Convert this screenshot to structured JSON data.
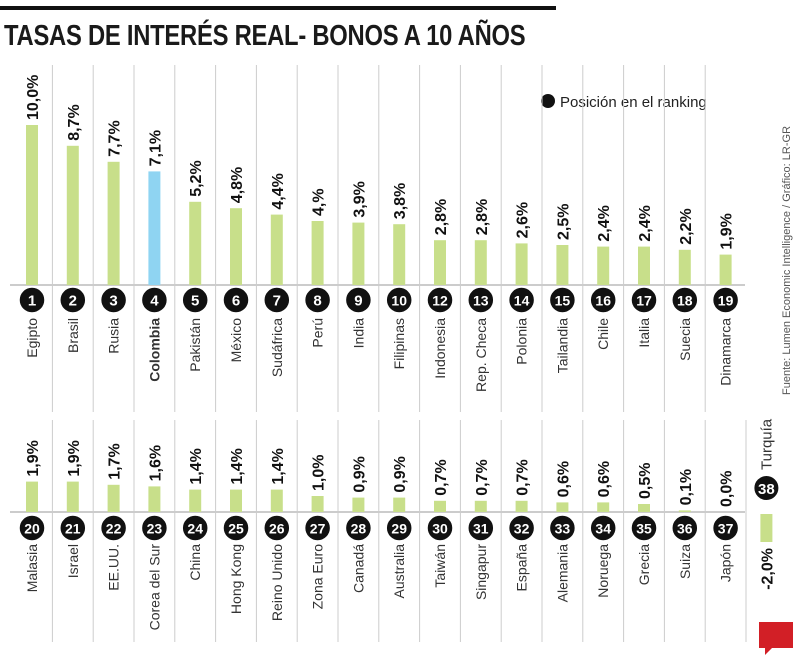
{
  "title": "TASAS DE INTERÉS REAL- BONOS A 10 AÑOS",
  "source": "Fuente: Lumen Economic Intelligence / Gráfico: LR-GR",
  "logo": "LR",
  "colors": {
    "bar": "#c8df8a",
    "highlight": "#8fd4f2",
    "circle": "#111111",
    "divider": "#cccccc"
  },
  "chart_data": {
    "type": "bar",
    "title": "TASAS DE INTERÉS REAL- BONOS A 10 AÑOS",
    "legend": {
      "label": "Posición en el ranking",
      "placement": "top-right"
    },
    "unit": "%",
    "highlight": "Colombia",
    "rows": [
      [
        {
          "rank": "1",
          "country": "Egipto",
          "value": 10.0,
          "label": "10,0%"
        },
        {
          "rank": "2",
          "country": "Brasil",
          "value": 8.7,
          "label": "8,7%"
        },
        {
          "rank": "3",
          "country": "Rusia",
          "value": 7.7,
          "label": "7,7%"
        },
        {
          "rank": "4",
          "country": "Colombia",
          "value": 7.1,
          "label": "7,1%"
        },
        {
          "rank": "5",
          "country": "Pakistán",
          "value": 5.2,
          "label": "5,2%"
        },
        {
          "rank": "6",
          "country": "México",
          "value": 4.8,
          "label": "4,8%"
        },
        {
          "rank": "7",
          "country": "Sudáfrica",
          "value": 4.4,
          "label": "4,4%"
        },
        {
          "rank": "8",
          "country": "Perú",
          "value": 4.0,
          "label": "4,%"
        },
        {
          "rank": "9",
          "country": "India",
          "value": 3.9,
          "label": "3,9%"
        },
        {
          "rank": "10",
          "country": "Filipinas",
          "value": 3.8,
          "label": "3,8%"
        },
        {
          "rank": "12",
          "country": "Indonesia",
          "value": 2.8,
          "label": "2,8%"
        },
        {
          "rank": "13",
          "country": "Rep. Checa",
          "value": 2.8,
          "label": "2,8%"
        },
        {
          "rank": "14",
          "country": "Polonia",
          "value": 2.6,
          "label": "2,6%"
        },
        {
          "rank": "15",
          "country": "Tailandia",
          "value": 2.5,
          "label": "2,5%"
        },
        {
          "rank": "16",
          "country": "Chile",
          "value": 2.4,
          "label": "2,4%"
        },
        {
          "rank": "17",
          "country": "Italia",
          "value": 2.4,
          "label": "2,4%"
        },
        {
          "rank": "18",
          "country": "Suecia",
          "value": 2.2,
          "label": "2,2%"
        },
        {
          "rank": "19",
          "country": "Dinamarca",
          "value": 1.9,
          "label": "1,9%"
        }
      ],
      [
        {
          "rank": "20",
          "country": "Malasia",
          "value": 1.9,
          "label": "1,9%"
        },
        {
          "rank": "21",
          "country": "Israel",
          "value": 1.9,
          "label": "1,9%"
        },
        {
          "rank": "22",
          "country": "EE.UU.",
          "value": 1.7,
          "label": "1,7%"
        },
        {
          "rank": "23",
          "country": "Corea del Sur",
          "value": 1.6,
          "label": "1,6%"
        },
        {
          "rank": "24",
          "country": "China",
          "value": 1.4,
          "label": "1,4%"
        },
        {
          "rank": "25",
          "country": "Hong Kong",
          "value": 1.4,
          "label": "1,4%"
        },
        {
          "rank": "26",
          "country": "Reino Unido",
          "value": 1.4,
          "label": "1,4%"
        },
        {
          "rank": "27",
          "country": "Zona Euro",
          "value": 1.0,
          "label": "1,0%"
        },
        {
          "rank": "28",
          "country": "Canadá",
          "value": 0.9,
          "label": "0,9%"
        },
        {
          "rank": "29",
          "country": "Australia",
          "value": 0.9,
          "label": "0,9%"
        },
        {
          "rank": "30",
          "country": "Taiwán",
          "value": 0.7,
          "label": "0,7%"
        },
        {
          "rank": "31",
          "country": "Singapur",
          "value": 0.7,
          "label": "0,7%"
        },
        {
          "rank": "32",
          "country": "España",
          "value": 0.7,
          "label": "0,7%"
        },
        {
          "rank": "33",
          "country": "Alemania",
          "value": 0.6,
          "label": "0,6%"
        },
        {
          "rank": "34",
          "country": "Noruega",
          "value": 0.6,
          "label": "0,6%"
        },
        {
          "rank": "35",
          "country": "Grecia",
          "value": 0.5,
          "label": "0,5%"
        },
        {
          "rank": "36",
          "country": "Suiza",
          "value": 0.1,
          "label": "0,1%"
        },
        {
          "rank": "37",
          "country": "Japón",
          "value": 0.0,
          "label": "0,0%"
        },
        {
          "rank": "38",
          "country": "Turquía",
          "value": -2.0,
          "label": "-2,0%"
        }
      ]
    ]
  }
}
